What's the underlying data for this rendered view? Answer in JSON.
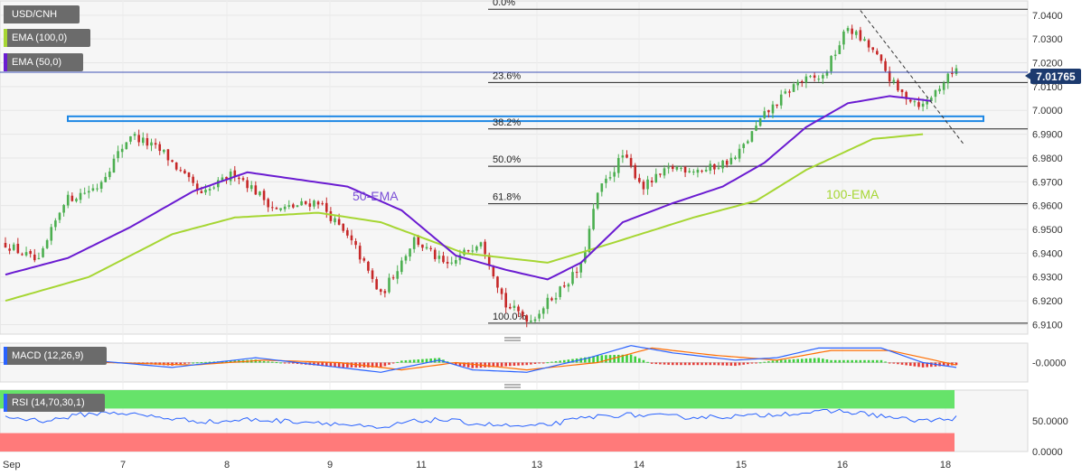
{
  "legend": {
    "symbol": "USD/CNH",
    "ema100": "EMA (100,0)",
    "ema50": "EMA (50,0)",
    "macd": "MACD (12,26,9)",
    "rsi": "RSI (14,70,30,1)"
  },
  "current_price": "7.01765",
  "colors": {
    "up": "#4caf50",
    "down": "#c62828",
    "ema50": "#6a1bd1",
    "ema100": "#a6d633",
    "macd_line": "#2962ff",
    "signal_line": "#ff6d00",
    "rsi_line": "#2962ff",
    "overbought": "#66e36a",
    "oversold": "#ff7a7a",
    "zone": "#1e88e5"
  },
  "chart_data": [
    {
      "type": "candlestick",
      "name": "price",
      "ylim": [
        6.906,
        7.046
      ],
      "yticks": [
        "7.0400",
        "7.0300",
        "7.0200",
        "7.0100",
        "7.0000",
        "6.9900",
        "6.9800",
        "6.9700",
        "6.9600",
        "6.9500",
        "6.9400",
        "6.9300",
        "6.9200",
        "6.9100"
      ],
      "xlabels": [
        "Sep",
        "7",
        "8",
        "9",
        "11",
        "13",
        "14",
        "15",
        "16",
        "18"
      ],
      "fib_levels": [
        {
          "label": "0.0%",
          "value": 7.0425
        },
        {
          "label": "23.6%",
          "value": 7.0117
        },
        {
          "label": "38.2%",
          "value": 6.9922
        },
        {
          "label": "50.0%",
          "value": 6.9765
        },
        {
          "label": "61.8%",
          "value": 6.9608
        },
        {
          "label": "100.0%",
          "value": 6.9106
        }
      ],
      "support_zone": [
        6.9955,
        6.9975
      ],
      "trendline": [
        {
          "bar": 205,
          "value": 7.042
        },
        {
          "bar": 227,
          "value": 6.989
        }
      ],
      "annotations": [
        "50-EMA",
        "100-EMA"
      ],
      "ema50_anchors": [
        [
          0,
          6.931
        ],
        [
          15,
          6.938
        ],
        [
          30,
          6.951
        ],
        [
          45,
          6.966
        ],
        [
          58,
          6.974
        ],
        [
          70,
          6.971
        ],
        [
          82,
          6.968
        ],
        [
          95,
          6.958
        ],
        [
          108,
          6.939
        ],
        [
          120,
          6.933
        ],
        [
          130,
          6.929
        ],
        [
          138,
          6.936
        ],
        [
          148,
          6.953
        ],
        [
          160,
          6.961
        ],
        [
          172,
          6.968
        ],
        [
          182,
          6.978
        ],
        [
          192,
          6.993
        ],
        [
          202,
          7.003
        ],
        [
          212,
          7.006
        ],
        [
          222,
          7.004
        ]
      ],
      "ema100_anchors": [
        [
          0,
          6.92
        ],
        [
          20,
          6.93
        ],
        [
          40,
          6.948
        ],
        [
          55,
          6.955
        ],
        [
          75,
          6.957
        ],
        [
          90,
          6.953
        ],
        [
          110,
          6.94
        ],
        [
          130,
          6.936
        ],
        [
          145,
          6.944
        ],
        [
          165,
          6.955
        ],
        [
          180,
          6.962
        ],
        [
          192,
          6.975
        ],
        [
          208,
          6.988
        ],
        [
          220,
          6.99
        ]
      ],
      "candle_path": [
        [
          0,
          6.944
        ],
        [
          8,
          6.936
        ],
        [
          14,
          6.962
        ],
        [
          22,
          6.968
        ],
        [
          30,
          6.99
        ],
        [
          38,
          6.982
        ],
        [
          47,
          6.964
        ],
        [
          55,
          6.974
        ],
        [
          65,
          6.958
        ],
        [
          75,
          6.962
        ],
        [
          84,
          6.942
        ],
        [
          90,
          6.922
        ],
        [
          98,
          6.946
        ],
        [
          106,
          6.934
        ],
        [
          114,
          6.946
        ],
        [
          120,
          6.918
        ],
        [
          126,
          6.912
        ],
        [
          133,
          6.925
        ],
        [
          138,
          6.934
        ],
        [
          142,
          6.965
        ],
        [
          148,
          6.981
        ],
        [
          153,
          6.968
        ],
        [
          160,
          6.976
        ],
        [
          168,
          6.975
        ],
        [
          175,
          6.98
        ],
        [
          182,
          6.998
        ],
        [
          190,
          7.012
        ],
        [
          196,
          7.014
        ],
        [
          202,
          7.035
        ],
        [
          208,
          7.025
        ],
        [
          214,
          7.008
        ],
        [
          220,
          7.002
        ],
        [
          225,
          7.012
        ],
        [
          228,
          7.0177
        ]
      ]
    },
    {
      "type": "line",
      "name": "MACD",
      "ytick": "-0.0000",
      "macd_anchors": [
        [
          0,
          0.001
        ],
        [
          20,
          0.001
        ],
        [
          40,
          -0.002
        ],
        [
          60,
          0.002
        ],
        [
          75,
          -0.001
        ],
        [
          90,
          -0.004
        ],
        [
          104,
          0.001
        ],
        [
          112,
          -0.003
        ],
        [
          125,
          -0.004
        ],
        [
          140,
          0.002
        ],
        [
          150,
          0.007
        ],
        [
          160,
          0.004
        ],
        [
          175,
          0.001
        ],
        [
          185,
          0.002
        ],
        [
          195,
          0.006
        ],
        [
          210,
          0.006
        ],
        [
          220,
          0.0
        ],
        [
          228,
          -0.002
        ]
      ],
      "signal_anchors": [
        [
          0,
          0.0
        ],
        [
          25,
          0.0
        ],
        [
          45,
          -0.001
        ],
        [
          62,
          0.001
        ],
        [
          80,
          0.0
        ],
        [
          95,
          -0.003
        ],
        [
          108,
          0.0
        ],
        [
          125,
          -0.003
        ],
        [
          142,
          0.0
        ],
        [
          155,
          0.006
        ],
        [
          170,
          0.003
        ],
        [
          185,
          0.001
        ],
        [
          198,
          0.005
        ],
        [
          212,
          0.005
        ],
        [
          228,
          -0.001
        ]
      ]
    },
    {
      "type": "line",
      "name": "RSI",
      "yticks": [
        "50.0000",
        "0.0000"
      ],
      "overbought": 70,
      "oversold": 30,
      "rsi_anchors": [
        [
          0,
          56
        ],
        [
          10,
          50
        ],
        [
          18,
          60
        ],
        [
          26,
          64
        ],
        [
          34,
          58
        ],
        [
          42,
          52
        ],
        [
          50,
          48
        ],
        [
          58,
          52
        ],
        [
          66,
          50
        ],
        [
          75,
          48
        ],
        [
          84,
          42
        ],
        [
          90,
          36
        ],
        [
          96,
          48
        ],
        [
          104,
          52
        ],
        [
          112,
          46
        ],
        [
          120,
          42
        ],
        [
          126,
          40
        ],
        [
          132,
          46
        ],
        [
          140,
          56
        ],
        [
          148,
          60
        ],
        [
          156,
          58
        ],
        [
          164,
          56
        ],
        [
          172,
          57
        ],
        [
          180,
          58
        ],
        [
          186,
          62
        ],
        [
          192,
          63
        ],
        [
          200,
          66
        ],
        [
          208,
          60
        ],
        [
          216,
          52
        ],
        [
          222,
          50
        ],
        [
          228,
          55
        ]
      ]
    }
  ]
}
